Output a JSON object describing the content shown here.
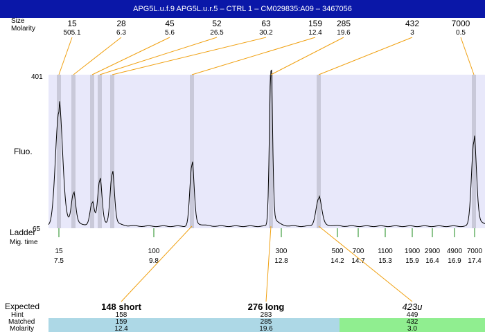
{
  "window": {
    "title": "APG5L.u.f.9  APG5L.u.r.5 – CTRL 1 – CM029835:A09 – 3467056"
  },
  "labels": {
    "size": "Size",
    "molarity": "Molarity",
    "fluo": "Fluo.",
    "y_top": "401",
    "y_bottom": "65",
    "ladder": "Ladder",
    "mig_time": "Mig. time",
    "expected": "Expected",
    "hint": "Hint",
    "matched": "Matched",
    "molarity_row": "Molarity"
  },
  "colors": {
    "plot_bg": "#e8e8fa",
    "band": "#c9c9d9",
    "leader": "#f0a010",
    "ladder_tick": "#1a8a1a",
    "title_bar": "#0a17a8",
    "blue_row": "#add8e6",
    "green_row": "#90ee90"
  },
  "chart_data": {
    "type": "line",
    "title": "APG5L.u.f.9  APG5L.u.r.5 – CTRL 1 – CM029835:A09 – 3467056",
    "ylabel": "Fluo.",
    "ylim": [
      65,
      401
    ],
    "peaks": [
      {
        "size": "15",
        "molarity": "505.1"
      },
      {
        "size": "28",
        "molarity": "6.3"
      },
      {
        "size": "45",
        "molarity": "5.6"
      },
      {
        "size": "52",
        "molarity": "26.5"
      },
      {
        "size": "63",
        "molarity": "30.2"
      },
      {
        "size": "159",
        "molarity": "12.4"
      },
      {
        "size": "285",
        "molarity": "19.6"
      },
      {
        "size": "432",
        "molarity": "3"
      },
      {
        "size": "7000",
        "molarity": "0.5"
      }
    ],
    "ladder": [
      {
        "size": "15",
        "time": "7.5"
      },
      {
        "size": "100",
        "time": "9.8"
      },
      {
        "size": "300",
        "time": "12.8"
      },
      {
        "size": "500",
        "time": "14.2"
      },
      {
        "size": "700",
        "time": "14.7"
      },
      {
        "size": "1100",
        "time": "15.3"
      },
      {
        "size": "1900",
        "time": "15.9"
      },
      {
        "size": "2900",
        "time": "16.4"
      },
      {
        "size": "4900",
        "time": "16.9"
      },
      {
        "size": "7000",
        "time": "17.4"
      }
    ],
    "expected": [
      {
        "label": "148 short",
        "hint": "158",
        "matched": "159",
        "molarity": "12.4"
      },
      {
        "label": "276 long",
        "hint": "283",
        "matched": "285",
        "molarity": "19.6"
      },
      {
        "label": "423u",
        "hint": "449",
        "matched": "432",
        "molarity": "3.0"
      }
    ]
  }
}
